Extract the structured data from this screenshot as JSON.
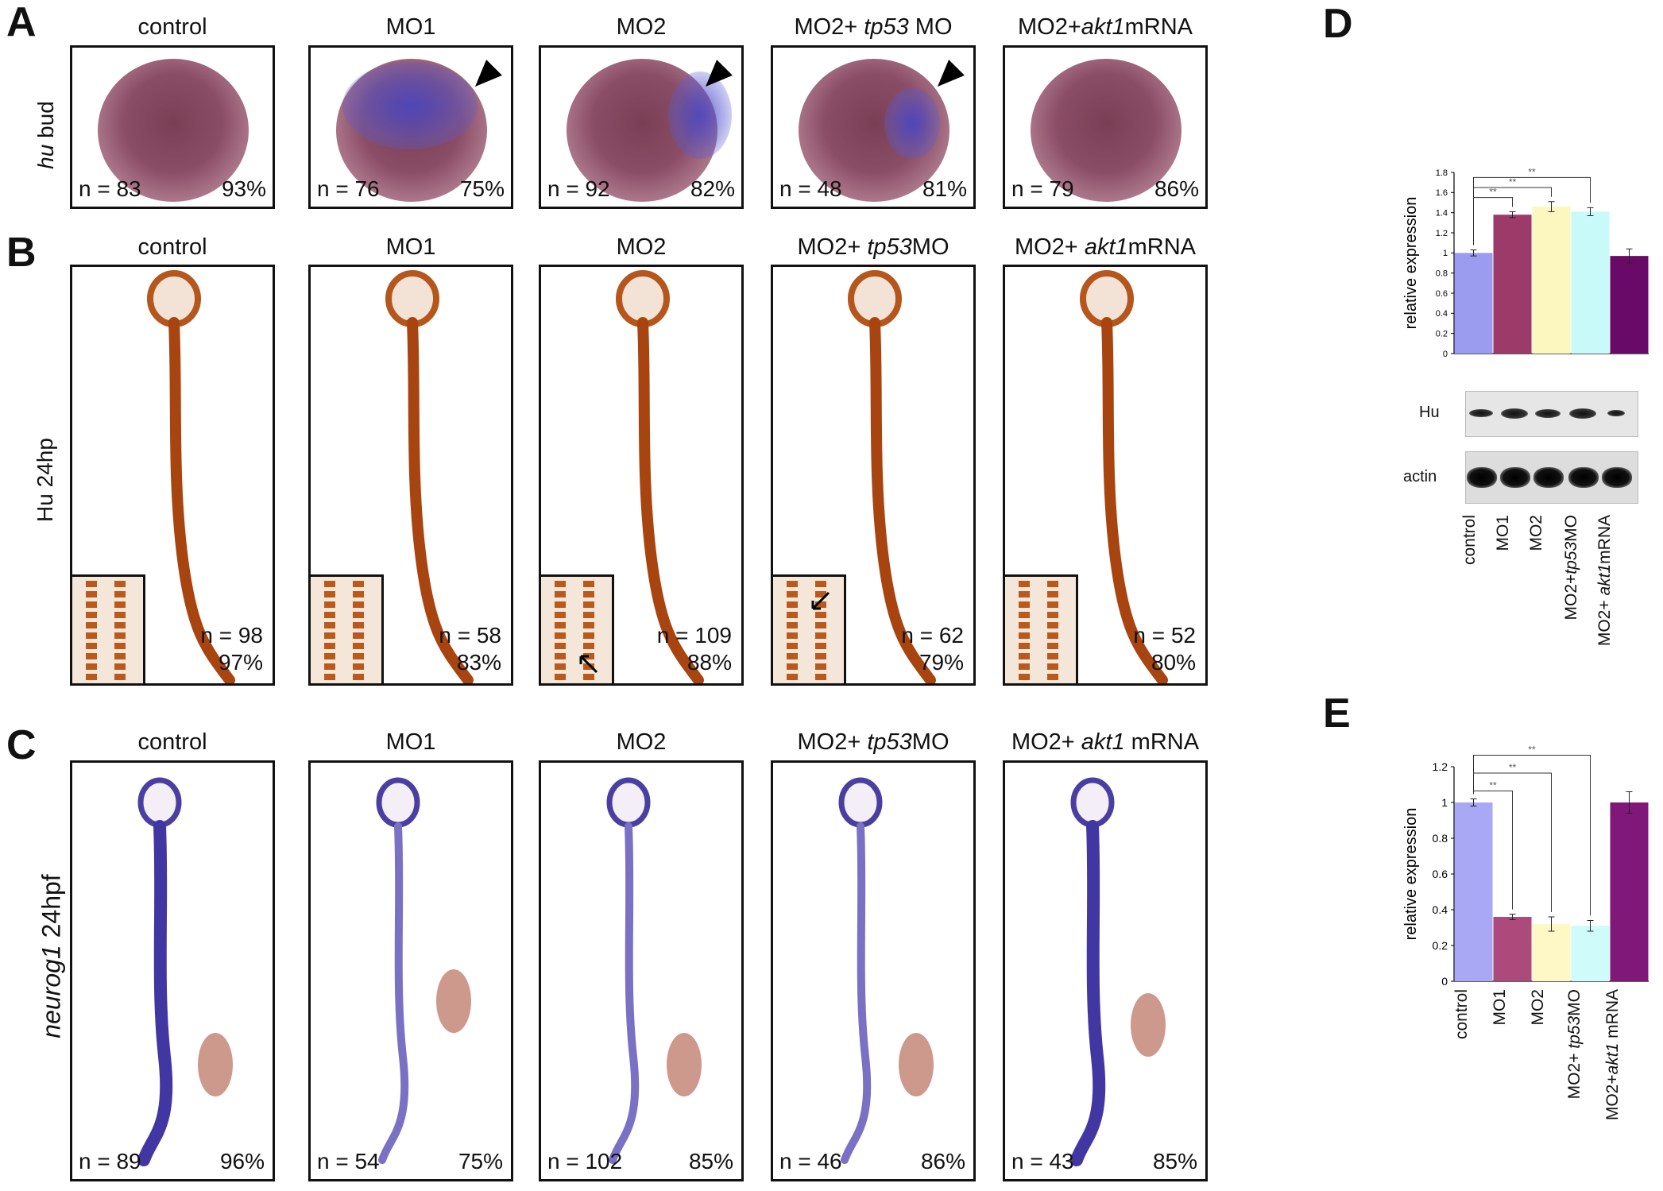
{
  "panel_letters": {
    "A": "A",
    "B": "B",
    "C": "C",
    "D": "D",
    "E": "E"
  },
  "row_labels": {
    "A_pre": "hu",
    "A_post": " bud",
    "B": "Hu 24hp",
    "C_pre": "neurog1",
    "C_post": " 24hpf"
  },
  "row_A": {
    "titles": [
      {
        "pre": "control",
        "it": "",
        "post": ""
      },
      {
        "pre": "MO1",
        "it": "",
        "post": ""
      },
      {
        "pre": "MO2",
        "it": "",
        "post": ""
      },
      {
        "pre": "MO2+ ",
        "it": "tp53",
        "post": " MO"
      },
      {
        "pre": "MO2+",
        "it": "akt1",
        "post": "mRNA"
      }
    ],
    "n": [
      "n = 83",
      "n = 76",
      "n = 92",
      "n = 48",
      "n = 79"
    ],
    "pct": [
      "93%",
      "75%",
      "82%",
      "81%",
      "86%"
    ]
  },
  "row_B": {
    "titles": [
      {
        "pre": "control",
        "it": "",
        "post": ""
      },
      {
        "pre": "MO1",
        "it": "",
        "post": ""
      },
      {
        "pre": "MO2",
        "it": "",
        "post": ""
      },
      {
        "pre": "MO2+ ",
        "it": "tp53",
        "post": "MO"
      },
      {
        "pre": "MO2+ ",
        "it": "akt1",
        "post": "mRNA"
      }
    ],
    "n": [
      "n = 98",
      "n = 58",
      "n = 109",
      "n = 62",
      "n = 52"
    ],
    "pct": [
      "97%",
      "83%",
      "88%",
      "79%",
      "80%"
    ]
  },
  "row_C": {
    "titles": [
      {
        "pre": "control",
        "it": "",
        "post": ""
      },
      {
        "pre": "MO1",
        "it": "",
        "post": ""
      },
      {
        "pre": "MO2",
        "it": "",
        "post": ""
      },
      {
        "pre": "MO2+ ",
        "it": "tp53",
        "post": "MO"
      },
      {
        "pre": "MO2+ ",
        "it": "akt1",
        "post": " mRNA"
      }
    ],
    "n": [
      "n = 89",
      "n = 54",
      "n = 102",
      "n = 46",
      "n = 43"
    ],
    "pct": [
      "96%",
      "75%",
      "85%",
      "86%",
      "85%"
    ]
  },
  "blot": {
    "band1": "Hu",
    "band2": "actin"
  },
  "chart_data": [
    {
      "type": "bar",
      "panel": "D",
      "ylabel": "relative expression",
      "ylim": [
        0,
        1.8
      ],
      "yticks": [
        "0",
        "0.2",
        "0.4",
        "0.6",
        "0.8",
        "1",
        "1.2",
        "1.4",
        "1.6",
        "1.8"
      ],
      "categories": [
        {
          "pre": "control",
          "it": "",
          "post": ""
        },
        {
          "pre": "MO1",
          "it": "",
          "post": ""
        },
        {
          "pre": "MO2",
          "it": "",
          "post": ""
        },
        {
          "pre": "MO2+",
          "it": "tp53",
          "post": "MO"
        },
        {
          "pre": "MO2+ ",
          "it": "akt1",
          "post": "mRNA"
        }
      ],
      "values": [
        1.0,
        1.38,
        1.46,
        1.41,
        0.97
      ],
      "errors": [
        0.03,
        0.03,
        0.05,
        0.04,
        0.07
      ],
      "colors": [
        "#9b9bf0",
        "#9c3a6a",
        "#fbf7bf",
        "#c8fafa",
        "#6a0a68"
      ],
      "significance": [
        "**",
        "**",
        "**"
      ]
    },
    {
      "type": "bar",
      "panel": "E",
      "ylabel": "relative expression",
      "ylim": [
        0,
        1.2
      ],
      "yticks": [
        "0",
        "0.2",
        "0.4",
        "0.6",
        "0.8",
        "1",
        "1.2"
      ],
      "categories": [
        {
          "pre": "control",
          "it": "",
          "post": ""
        },
        {
          "pre": "MO1",
          "it": "",
          "post": ""
        },
        {
          "pre": "MO2",
          "it": "",
          "post": ""
        },
        {
          "pre": "MO2+ ",
          "it": "tp53",
          "post": "MO"
        },
        {
          "pre": "MO2+",
          "it": "akt1",
          "post": " mRNA"
        }
      ],
      "values": [
        1.0,
        0.36,
        0.32,
        0.31,
        1.0
      ],
      "errors": [
        0.02,
        0.015,
        0.04,
        0.03,
        0.06
      ],
      "colors": [
        "#a8a8f4",
        "#ad4a7c",
        "#fdf8c6",
        "#cffbfb",
        "#7f1878"
      ],
      "significance": [
        "**",
        "**",
        "**"
      ]
    }
  ]
}
